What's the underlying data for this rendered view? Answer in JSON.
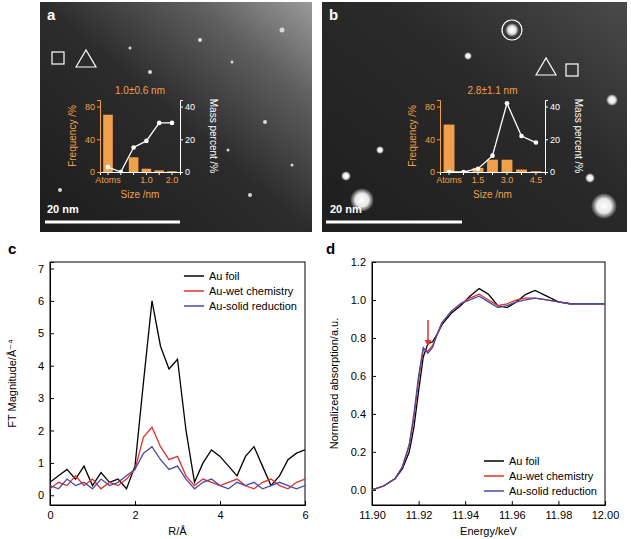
{
  "chart_data": [
    {
      "type": "bar",
      "panel": "a",
      "annotation": "1.0±0.6 nm",
      "scale_bar": "20 nm",
      "xlabel": "Size /nm",
      "ylabel": "Frequency /%",
      "y2label": "Mass percent /%",
      "categories": [
        "Atoms",
        null,
        null,
        "1.0",
        null,
        "2.0"
      ],
      "ylim": [
        0,
        88
      ],
      "yticks": [
        0,
        40,
        80
      ],
      "y2lim": [
        0,
        44
      ],
      "y2ticks": [
        0,
        20,
        40
      ],
      "series": [
        {
          "type": "bar",
          "color": "#f0a04b",
          "values": [
            70,
            0,
            18,
            4,
            2,
            1
          ]
        },
        {
          "type": "line",
          "axis": "y2",
          "color": "#ffffff",
          "marker": "circle",
          "values": [
            3,
            0,
            15,
            19,
            30,
            30
          ]
        }
      ]
    },
    {
      "type": "bar",
      "panel": "b",
      "annotation": "2.8±1.1 nm",
      "scale_bar": "20 nm",
      "xlabel": "Size /nm",
      "ylabel": "Frequency /%",
      "y2label": "Mass percent /%",
      "categories": [
        "Atoms",
        null,
        "1.5",
        null,
        "3.0",
        null,
        "4.5"
      ],
      "ylim": [
        0,
        88
      ],
      "yticks": [
        0,
        40,
        80
      ],
      "y2lim": [
        0,
        44
      ],
      "y2ticks": [
        0,
        20,
        40
      ],
      "series": [
        {
          "type": "bar",
          "color": "#f0a04b",
          "values": [
            58,
            0,
            5,
            15,
            15,
            3,
            1
          ]
        },
        {
          "type": "line",
          "axis": "y2",
          "color": "#ffffff",
          "marker": "circle",
          "values": [
            0,
            0,
            2,
            10,
            42,
            22,
            18
          ]
        }
      ]
    },
    {
      "type": "line",
      "panel": "c",
      "xlabel": "R/Å",
      "ylabel": "FT Magnitude/Å⁻⁴",
      "legend": "upper right",
      "xlim": [
        0,
        6
      ],
      "xticks": [
        0,
        2,
        4,
        6
      ],
      "ylim": [
        -0.3,
        7.2
      ],
      "yticks": [
        0,
        1,
        2,
        3,
        4,
        5,
        6,
        7
      ],
      "x": [
        0,
        0.2,
        0.4,
        0.6,
        0.8,
        1,
        1.2,
        1.4,
        1.6,
        1.8,
        2,
        2.2,
        2.4,
        2.6,
        2.8,
        3,
        3.2,
        3.4,
        3.6,
        3.8,
        4,
        4.2,
        4.4,
        4.6,
        4.8,
        5,
        5.2,
        5.4,
        5.6,
        5.8,
        6
      ],
      "series": [
        {
          "name": "Au foil",
          "color": "#000000",
          "values": [
            0.4,
            0.6,
            0.8,
            0.5,
            0.9,
            0.3,
            0.7,
            0.4,
            0.5,
            0.2,
            0.9,
            3.5,
            6.0,
            4.6,
            3.9,
            4.2,
            2.0,
            0.4,
            1.0,
            1.4,
            1.2,
            0.9,
            0.6,
            1.2,
            1.5,
            0.9,
            0.3,
            0.6,
            1.1,
            1.3,
            1.4
          ]
        },
        {
          "name": "Au-wet chemistry",
          "color": "#e0302a",
          "values": [
            0.2,
            0.4,
            0.3,
            0.6,
            0.3,
            0.5,
            0.2,
            0.4,
            0.3,
            0.5,
            0.8,
            1.8,
            2.1,
            1.5,
            1.1,
            1.2,
            0.6,
            0.3,
            0.5,
            0.4,
            0.3,
            0.4,
            0.5,
            0.3,
            0.2,
            0.4,
            0.5,
            0.3,
            0.2,
            0.4,
            0.5
          ]
        },
        {
          "name": "Au-solid reduction",
          "color": "#4a4aa8",
          "values": [
            0.3,
            0.2,
            0.5,
            0.3,
            0.4,
            0.2,
            0.5,
            0.3,
            0.4,
            0.6,
            0.8,
            1.3,
            1.5,
            1.1,
            0.8,
            0.9,
            0.5,
            0.2,
            0.4,
            0.5,
            0.3,
            0.2,
            0.4,
            0.3,
            0.4,
            0.2,
            0.3,
            0.4,
            0.3,
            0.2,
            0.3
          ]
        }
      ]
    },
    {
      "type": "line",
      "panel": "d",
      "xlabel": "Energy/keV",
      "ylabel": "Normalized absorption/a.u.",
      "legend": "lower right",
      "xlim": [
        11.9,
        12.0
      ],
      "xticks": [
        {
          "value": 11.9,
          "label": "11.90"
        },
        11.92,
        11.94,
        11.96,
        11.98,
        {
          "value": 12.0,
          "label": "12.00"
        }
      ],
      "ylim": [
        -0.08,
        1.2
      ],
      "yticks": [
        {
          "value": 0,
          "label": "0.0"
        },
        0.2,
        0.4,
        0.6,
        0.8,
        {
          "value": 1,
          "label": "1.0"
        },
        1.2
      ],
      "x": [
        11.9,
        11.905,
        11.91,
        11.913,
        11.916,
        11.918,
        11.92,
        11.922,
        11.924,
        11.926,
        11.928,
        11.93,
        11.934,
        11.938,
        11.942,
        11.946,
        11.95,
        11.954,
        11.958,
        11.962,
        11.966,
        11.97,
        11.975,
        11.98,
        11.985,
        11.99,
        11.995,
        12.0
      ],
      "series": [
        {
          "name": "Au foil",
          "color": "#000000",
          "values": [
            0.0,
            0.02,
            0.06,
            0.11,
            0.2,
            0.33,
            0.52,
            0.7,
            0.77,
            0.78,
            0.82,
            0.87,
            0.93,
            0.97,
            1.02,
            1.06,
            1.03,
            0.97,
            0.96,
            0.99,
            1.03,
            1.05,
            1.02,
            0.99,
            0.98,
            0.98,
            0.98,
            0.98
          ]
        },
        {
          "name": "Au-wet chemistry",
          "color": "#e0302a",
          "values": [
            0.0,
            0.02,
            0.06,
            0.12,
            0.23,
            0.38,
            0.58,
            0.74,
            0.73,
            0.76,
            0.82,
            0.88,
            0.94,
            0.98,
            1.01,
            1.03,
            1.0,
            0.97,
            0.98,
            1.0,
            1.01,
            1.01,
            1.0,
            0.99,
            0.98,
            0.98,
            0.98,
            0.98
          ]
        },
        {
          "name": "Au-solid reduction",
          "color": "#4a4aa8",
          "values": [
            0.0,
            0.02,
            0.06,
            0.12,
            0.24,
            0.4,
            0.6,
            0.75,
            0.72,
            0.75,
            0.82,
            0.88,
            0.94,
            0.98,
            1.0,
            1.02,
            0.99,
            0.96,
            0.97,
            0.99,
            1.0,
            1.01,
            1.0,
            0.99,
            0.98,
            0.98,
            0.98,
            0.98
          ]
        }
      ]
    }
  ]
}
